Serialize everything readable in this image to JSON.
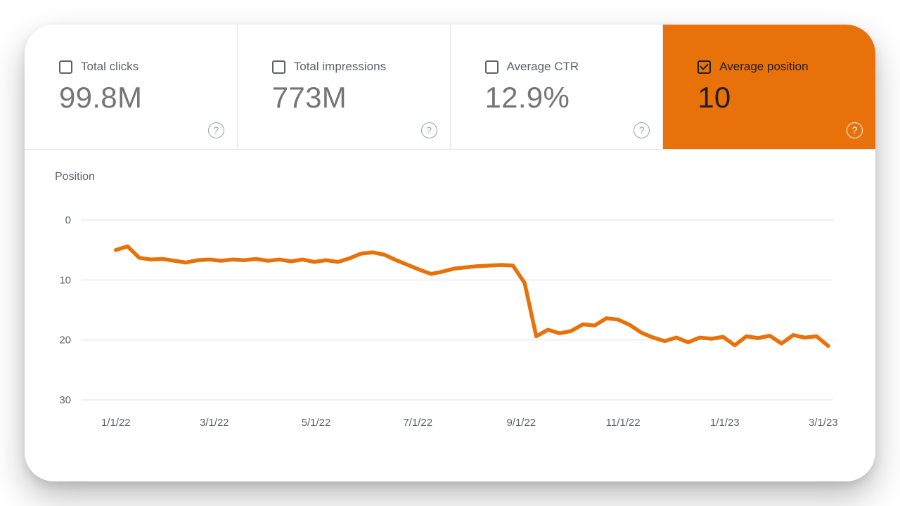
{
  "panel": {
    "name": "Search performance panel"
  },
  "icons": {
    "help_glyph": "?"
  },
  "colors": {
    "accent_orange": "#e8710a",
    "text_dark": "#202124",
    "text_gray": "#5f6368",
    "value_gray": "#757575",
    "gridline": "#e3e5e8"
  },
  "cards": [
    {
      "label": "Total clicks",
      "value": "99.8M",
      "checked": false,
      "selected": false
    },
    {
      "label": "Total impressions",
      "value": "773M",
      "checked": false,
      "selected": false
    },
    {
      "label": "Average CTR",
      "value": "12.9%",
      "checked": false,
      "selected": false
    },
    {
      "label": "Average position",
      "value": "10",
      "checked": true,
      "selected": true
    }
  ],
  "chart_data": {
    "type": "line",
    "title": "Position",
    "ylabel": "Position",
    "ylim": [
      0,
      30
    ],
    "y_inverted": true,
    "y_ticks": [
      0,
      10,
      20,
      30
    ],
    "grid": true,
    "x_ticks": [
      {
        "day": 0,
        "label": "1/1/22"
      },
      {
        "day": 59,
        "label": "3/1/22"
      },
      {
        "day": 120,
        "label": "5/1/22"
      },
      {
        "day": 181,
        "label": "7/1/22"
      },
      {
        "day": 243,
        "label": "9/1/22"
      },
      {
        "day": 304,
        "label": "11/1/22"
      },
      {
        "day": 365,
        "label": "1/1/23"
      },
      {
        "day": 424,
        "label": "3/1/23"
      }
    ],
    "x_interval_days": 7,
    "series": [
      {
        "name": "Average position",
        "color": "#e8710a",
        "values": [
          5.0,
          4.4,
          6.3,
          6.6,
          6.5,
          6.8,
          7.1,
          6.7,
          6.6,
          6.8,
          6.6,
          6.7,
          6.5,
          6.8,
          6.6,
          6.9,
          6.6,
          7.0,
          6.7,
          7.0,
          6.4,
          5.6,
          5.4,
          5.8,
          6.7,
          7.5,
          8.3,
          9.0,
          8.6,
          8.1,
          7.9,
          7.7,
          7.6,
          7.5,
          7.6,
          10.5,
          19.4,
          18.3,
          18.9,
          18.5,
          17.4,
          17.6,
          16.4,
          16.6,
          17.5,
          18.8,
          19.6,
          20.2,
          19.6,
          20.4,
          19.6,
          19.8,
          19.5,
          20.9,
          19.4,
          19.7,
          19.3,
          20.6,
          19.2,
          19.6,
          19.4,
          21.0
        ]
      }
    ]
  }
}
